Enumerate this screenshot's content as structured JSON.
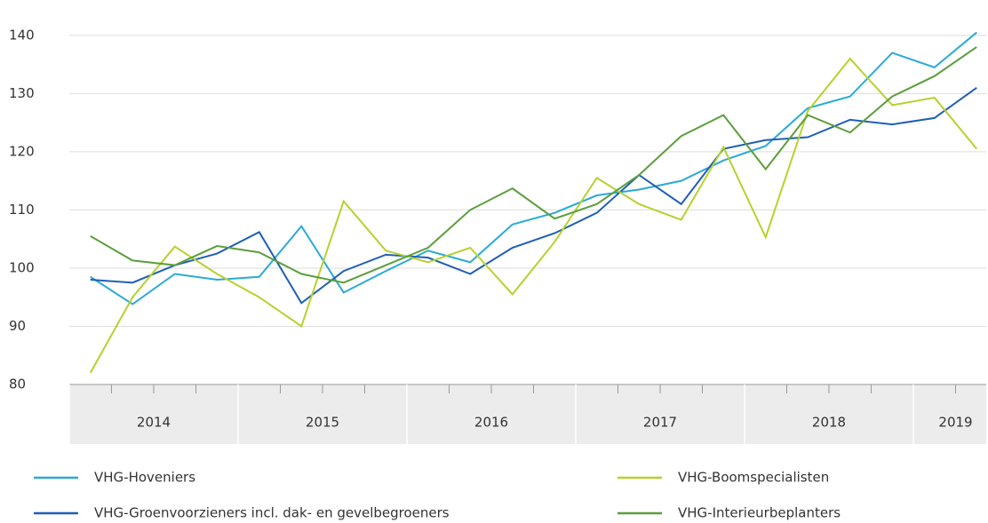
{
  "chart_data": {
    "type": "line",
    "categories": [
      null,
      null,
      null,
      null,
      null,
      null,
      null,
      null,
      null,
      null,
      null,
      null,
      null,
      null,
      null,
      null,
      null,
      null,
      null,
      null,
      null,
      null
    ],
    "years": [
      "2014",
      "2015",
      "2016",
      "2017",
      "2018",
      "2019"
    ],
    "ylim": [
      80,
      141.5
    ],
    "yticks": [
      80,
      90,
      100,
      110,
      120,
      130,
      140
    ],
    "grid": true,
    "series": [
      {
        "name": "VHG-Hoveniers",
        "color": "#2aa9d9",
        "values": [
          98.5,
          93.8,
          99,
          98,
          98.5,
          107.2,
          95.8,
          99.5,
          103,
          101,
          107.5,
          109.5,
          112.5,
          113.5,
          115,
          118.5,
          121,
          127.5,
          129.5,
          137,
          134.5,
          140.5
        ]
      },
      {
        "name": "VHG-Groenvoorzieners incl. dak- en gevelbegroeners",
        "color": "#1f5fb5",
        "values": [
          98,
          97.5,
          100.5,
          102.5,
          106.2,
          94,
          99.5,
          102.3,
          101.8,
          99,
          103.5,
          106,
          109.5,
          116,
          111,
          120.5,
          122,
          122.5,
          125.5,
          124.7,
          125.8,
          131
        ]
      },
      {
        "name": "VHG-Boomspecialisten",
        "color": "#b7d12c",
        "values": [
          82,
          95,
          103.7,
          99,
          95,
          90,
          111.5,
          103,
          101,
          103.5,
          95.5,
          104.5,
          115.5,
          111,
          108.3,
          120.8,
          105.3,
          127,
          136,
          128,
          129.3,
          120.5
        ]
      },
      {
        "name": "VHG-Interieurbeplanters",
        "color": "#5b9e3b",
        "values": [
          105.5,
          101.3,
          100.5,
          103.8,
          102.7,
          99,
          97.5,
          100.5,
          103.5,
          110,
          113.7,
          108.5,
          111,
          116,
          122.7,
          126.3,
          117,
          126.3,
          123.3,
          129.5,
          133,
          138
        ]
      }
    ]
  }
}
